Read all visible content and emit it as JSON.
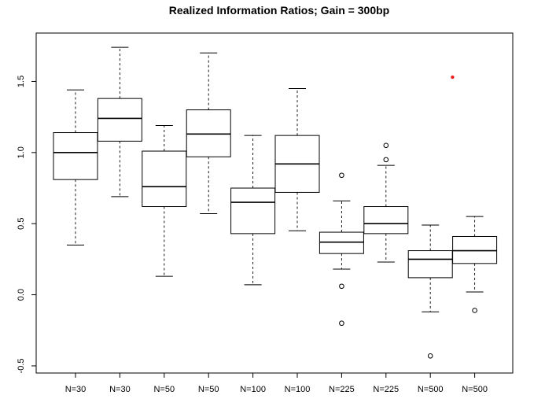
{
  "chart_data": {
    "type": "boxplot",
    "title": "Realized Information Ratios; Gain = 300bp",
    "xlabel": "",
    "ylabel": "",
    "ylim": [
      -0.55,
      1.84
    ],
    "grid": false,
    "categories": [
      "N=30",
      "N=30",
      "N=50",
      "N=50",
      "N=100",
      "N=100",
      "N=225",
      "N=225",
      "N=500",
      "N=500"
    ],
    "y_ticks": [
      {
        "value": -0.5,
        "label": "-0.5"
      },
      {
        "value": 0.0,
        "label": "0.0"
      },
      {
        "value": 0.5,
        "label": "0.5"
      },
      {
        "value": 1.0,
        "label": "1.0"
      },
      {
        "value": 1.5,
        "label": "1.5"
      }
    ],
    "boxes": [
      {
        "label": "N=30",
        "whisker_low": 0.35,
        "q1": 0.81,
        "median": 1.0,
        "q3": 1.14,
        "whisker_high": 1.44,
        "outliers": []
      },
      {
        "label": "N=30",
        "whisker_low": 0.69,
        "q1": 1.08,
        "median": 1.24,
        "q3": 1.38,
        "whisker_high": 1.74,
        "outliers": []
      },
      {
        "label": "N=50",
        "whisker_low": 0.13,
        "q1": 0.62,
        "median": 0.76,
        "q3": 1.01,
        "whisker_high": 1.19,
        "outliers": []
      },
      {
        "label": "N=50",
        "whisker_low": 0.57,
        "q1": 0.97,
        "median": 1.13,
        "q3": 1.3,
        "whisker_high": 1.7,
        "outliers": []
      },
      {
        "label": "N=100",
        "whisker_low": 0.07,
        "q1": 0.43,
        "median": 0.65,
        "q3": 0.75,
        "whisker_high": 1.12,
        "outliers": []
      },
      {
        "label": "N=100",
        "whisker_low": 0.45,
        "q1": 0.72,
        "median": 0.92,
        "q3": 1.12,
        "whisker_high": 1.45,
        "outliers": []
      },
      {
        "label": "N=225",
        "whisker_low": 0.18,
        "q1": 0.29,
        "median": 0.37,
        "q3": 0.44,
        "whisker_high": 0.66,
        "outliers": [
          0.84,
          0.06,
          -0.2
        ]
      },
      {
        "label": "N=225",
        "whisker_low": 0.23,
        "q1": 0.43,
        "median": 0.5,
        "q3": 0.62,
        "whisker_high": 0.91,
        "outliers": [
          1.05,
          0.95
        ]
      },
      {
        "label": "N=500",
        "whisker_low": -0.12,
        "q1": 0.12,
        "median": 0.25,
        "q3": 0.31,
        "whisker_high": 0.49,
        "outliers": [
          -0.43
        ]
      },
      {
        "label": "N=500",
        "whisker_low": 0.02,
        "q1": 0.22,
        "median": 0.31,
        "q3": 0.41,
        "whisker_high": 0.55,
        "outliers": [
          -0.11
        ]
      }
    ],
    "highlight_points": [
      {
        "position_between": [
          9,
          10
        ],
        "value": 1.53,
        "color": "#ee2222"
      }
    ]
  }
}
